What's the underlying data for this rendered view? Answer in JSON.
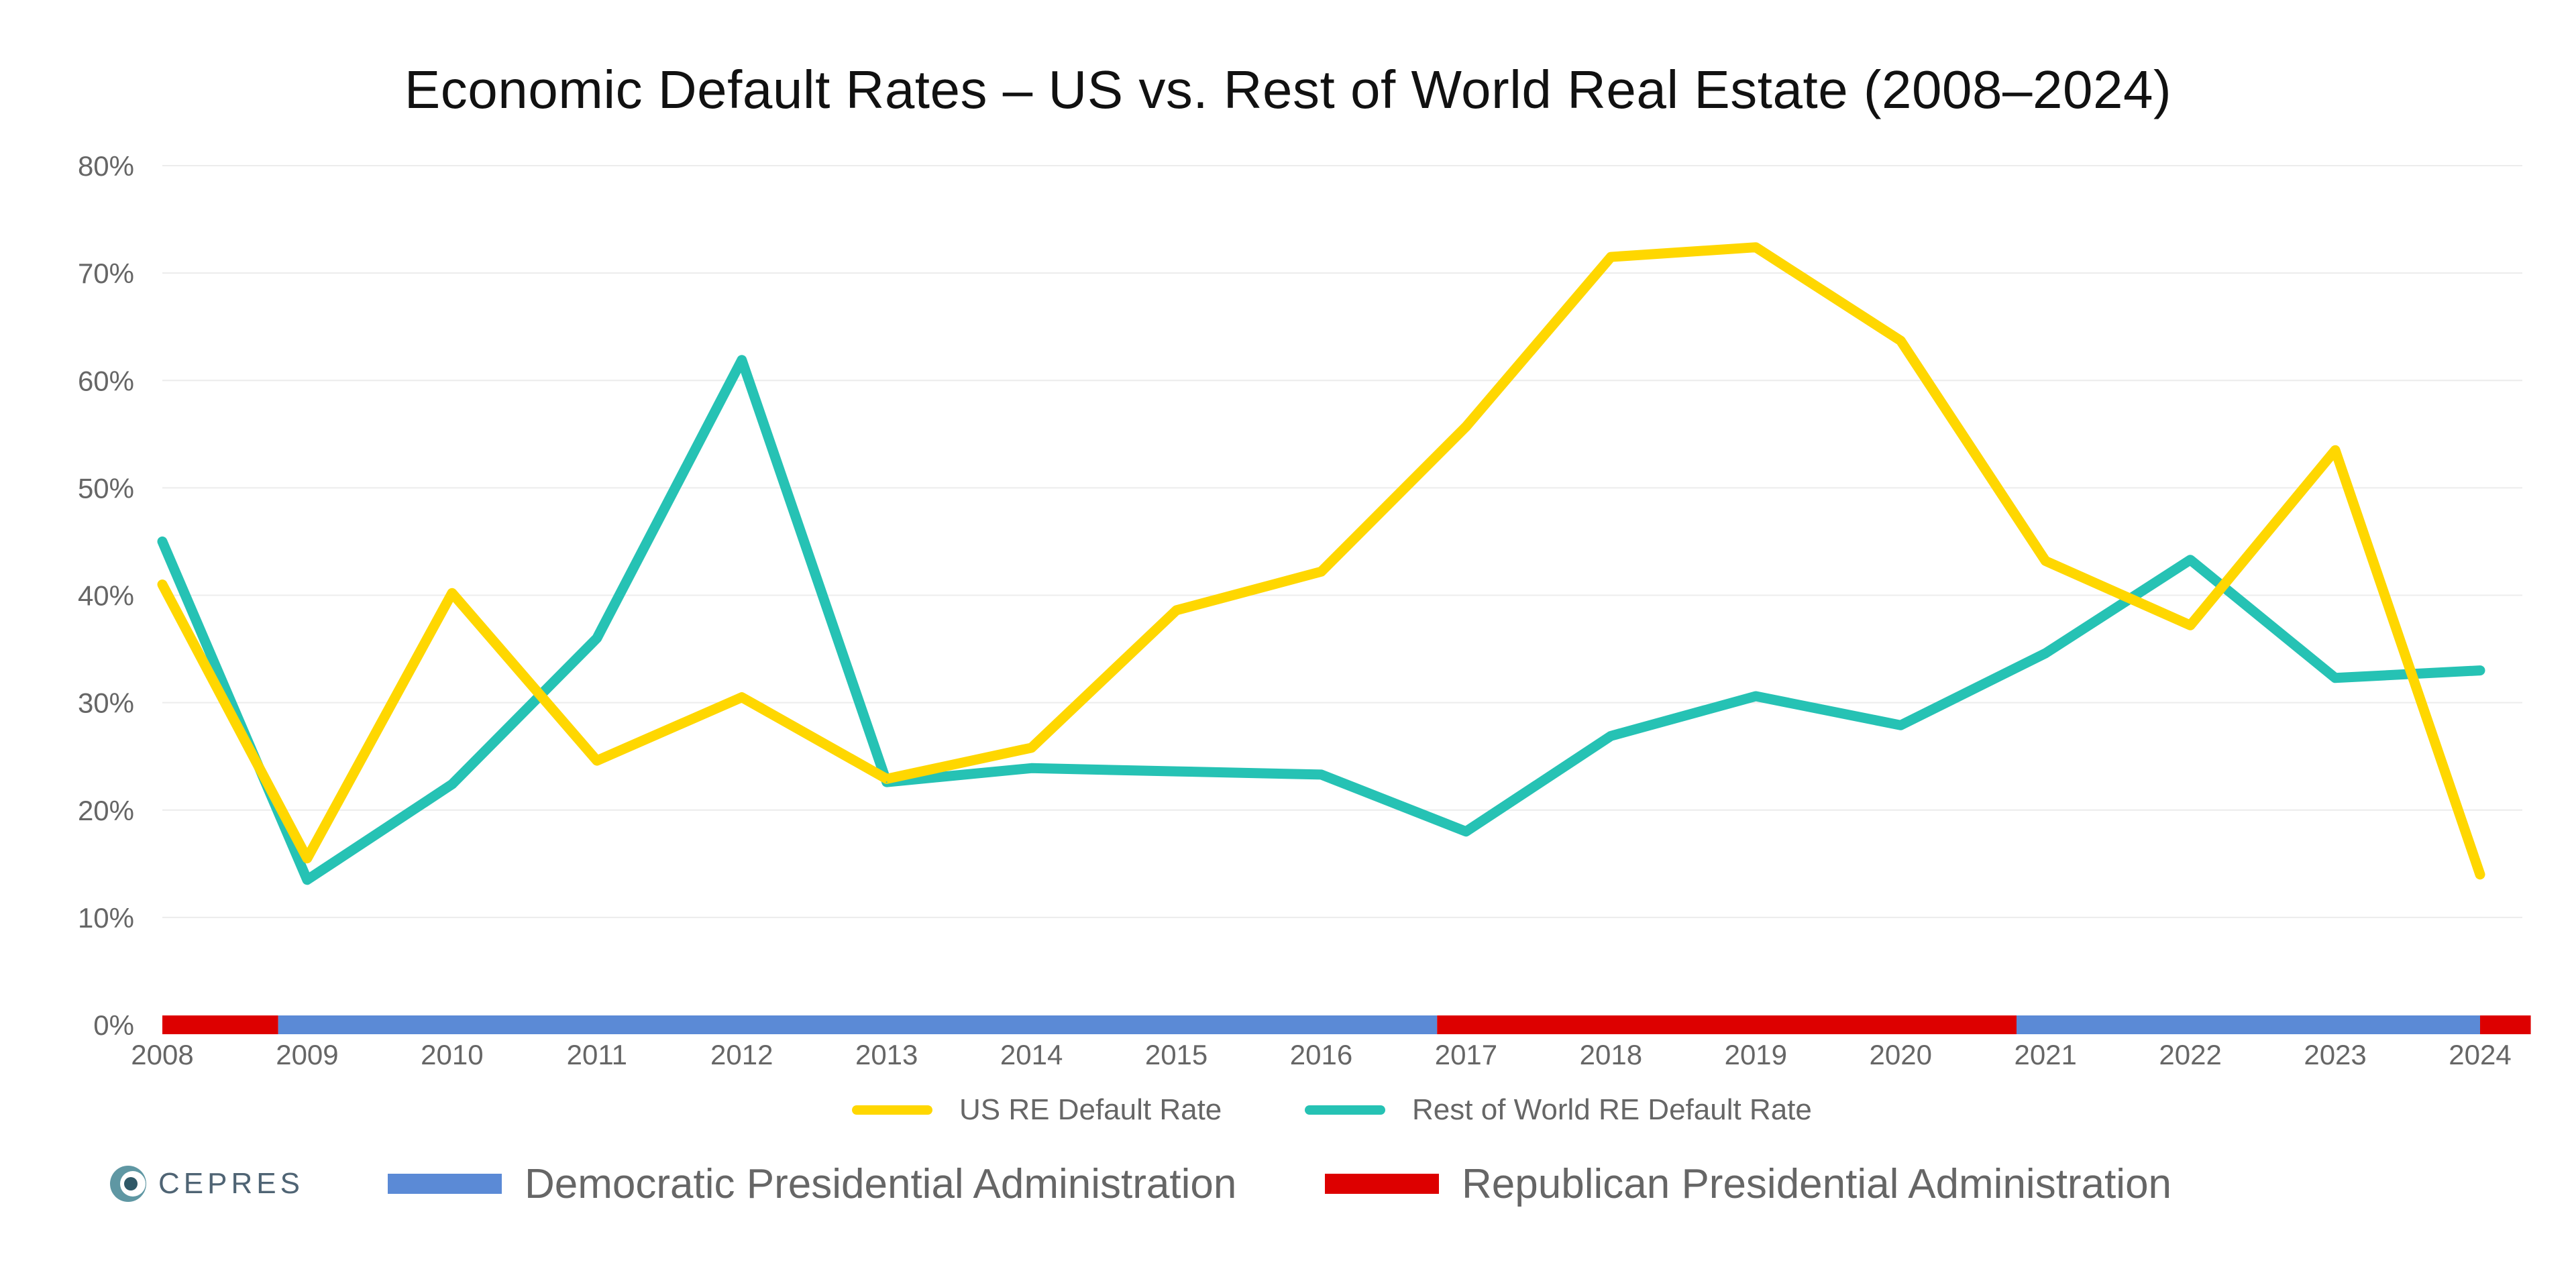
{
  "chart_data": {
    "type": "line",
    "title": "Economic Default Rates – US vs. Rest of World Real Estate (2008–2024)",
    "xlabel": "",
    "ylabel": "",
    "ylim": [
      0,
      80
    ],
    "y_ticks": [
      "0%",
      "10%",
      "20%",
      "30%",
      "40%",
      "50%",
      "60%",
      "70%",
      "80%"
    ],
    "y_tick_values": [
      0,
      10,
      20,
      30,
      40,
      50,
      60,
      70,
      80
    ],
    "categories": [
      "2008",
      "2009",
      "2010",
      "2011",
      "2012",
      "2013",
      "2014",
      "2015",
      "2016",
      "2017",
      "2018",
      "2019",
      "2020",
      "2021",
      "2022",
      "2023",
      "2024"
    ],
    "series": [
      {
        "name": "US RE Default Rate",
        "color": "#FFD700",
        "values": [
          41,
          15.5,
          40.2,
          24.6,
          30.5,
          22.9,
          25.8,
          38.6,
          42.2,
          55.7,
          71.5,
          72.4,
          63.7,
          43.2,
          37.2,
          53.5,
          14.0
        ]
      },
      {
        "name": "Rest of World RE Default Rate",
        "color": "#26C2B4",
        "values": [
          45,
          13.5,
          22.4,
          36.0,
          61.9,
          22.6,
          23.9,
          23.6,
          23.3,
          18.0,
          26.9,
          30.6,
          27.9,
          34.6,
          43.3,
          32.3,
          33.0
        ]
      }
    ],
    "grid": true,
    "legend": "bottom-center",
    "administration_band": {
      "segments": [
        {
          "from": 2008,
          "to": 2008.8,
          "party": "Republican"
        },
        {
          "from": 2008.8,
          "to": 2016.8,
          "party": "Democratic"
        },
        {
          "from": 2016.8,
          "to": 2020.8,
          "party": "Republican"
        },
        {
          "from": 2020.8,
          "to": 2024.0,
          "party": "Democratic"
        },
        {
          "from": 2024.0,
          "to": 2024.35,
          "party": "Republican"
        }
      ],
      "legend": [
        {
          "party": "Democratic",
          "label": "Democratic Presidential Administration",
          "color": "#5B8AD6"
        },
        {
          "party": "Republican",
          "label": "Republican Presidential Administration",
          "color": "#DD0000"
        }
      ]
    }
  },
  "brand": {
    "name": "CEPRES",
    "icon": "cepres-logo-icon"
  }
}
